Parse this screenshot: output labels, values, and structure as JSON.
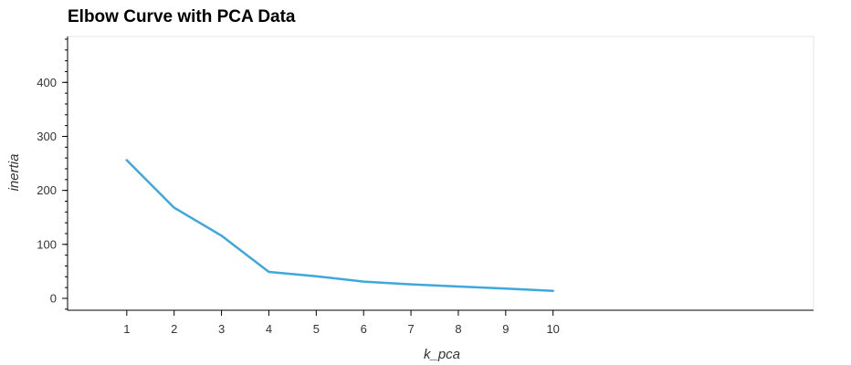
{
  "chart_data": {
    "type": "line",
    "title": "Elbow Curve with PCA Data",
    "xlabel": "k_pca",
    "ylabel": "inertia",
    "x": [
      1,
      2,
      3,
      4,
      5,
      6,
      7,
      8,
      9,
      10
    ],
    "series": [
      {
        "values": [
          256,
          168,
          116,
          49,
          41,
          31,
          26,
          22,
          18,
          14
        ]
      }
    ],
    "xlim": [
      -0.25,
      15.5
    ],
    "ylim": [
      -22,
      485
    ],
    "xticks": [
      "1",
      "2",
      "3",
      "4",
      "5",
      "6",
      "7",
      "8",
      "9",
      "10"
    ],
    "yticks": [
      "0",
      "100",
      "200",
      "300",
      "400"
    ],
    "grid": false,
    "legend": "none",
    "line_color": "#3ea7db"
  }
}
